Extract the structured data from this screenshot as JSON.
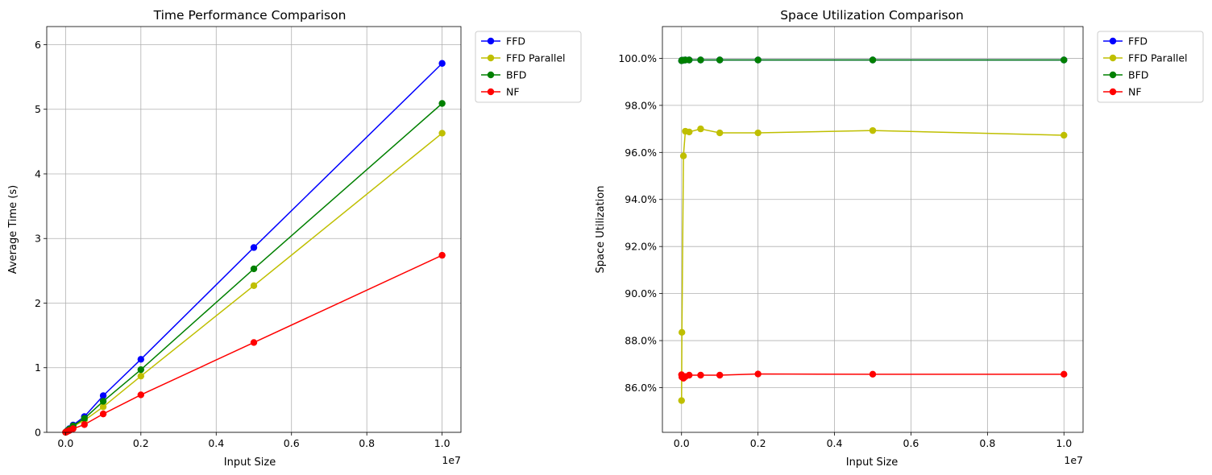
{
  "chart_data": [
    {
      "type": "line",
      "title": "Time Performance Comparison",
      "xlabel": "Input Size",
      "ylabel": "Average Time (s)",
      "x_offset_label": "1e7",
      "x_scale_factor": 10000000,
      "xlim": [
        -0.05,
        1.05
      ],
      "ylim": [
        0,
        6.28
      ],
      "x_ticks": [
        0.0,
        0.2,
        0.4,
        0.6,
        0.8,
        1.0
      ],
      "x_tick_labels": [
        "0.0",
        "0.2",
        "0.4",
        "0.6",
        "0.8",
        "1.0"
      ],
      "y_ticks": [
        0,
        1,
        2,
        3,
        4,
        5,
        6
      ],
      "y_tick_labels": [
        "0",
        "1",
        "2",
        "3",
        "4",
        "5",
        "6"
      ],
      "grid": true,
      "legend_position": "outside-upper-right",
      "x": [
        1000,
        10000,
        50000,
        100000,
        200000,
        500000,
        1000000,
        2000000,
        5000000,
        10000000
      ],
      "series": [
        {
          "name": "FFD",
          "color": "#0000ff",
          "values": [
            0.001,
            0.006,
            0.028,
            0.056,
            0.113,
            0.243,
            0.567,
            1.13,
            2.86,
            5.71
          ]
        },
        {
          "name": "FFD Parallel",
          "color": "#bfbf00",
          "values": [
            0.001,
            0.005,
            0.023,
            0.046,
            0.092,
            0.185,
            0.395,
            0.87,
            2.27,
            4.63
          ]
        },
        {
          "name": "BFD",
          "color": "#008000",
          "values": [
            0.001,
            0.005,
            0.025,
            0.05,
            0.1,
            0.215,
            0.48,
            0.97,
            2.53,
            5.09
          ]
        },
        {
          "name": "NF",
          "color": "#ff0000",
          "values": [
            0.0005,
            0.003,
            0.014,
            0.028,
            0.056,
            0.12,
            0.285,
            0.58,
            1.39,
            2.74
          ]
        }
      ]
    },
    {
      "type": "line",
      "title": "Space Utilization Comparison",
      "xlabel": "Input Size",
      "ylabel": "Space Utilization",
      "x_offset_label": "1e7",
      "x_scale_factor": 10000000,
      "xlim": [
        -0.05,
        1.05
      ],
      "ylim": [
        84.1,
        101.35
      ],
      "x_ticks": [
        0.0,
        0.2,
        0.4,
        0.6,
        0.8,
        1.0
      ],
      "x_tick_labels": [
        "0.0",
        "0.2",
        "0.4",
        "0.6",
        "0.8",
        "1.0"
      ],
      "y_ticks": [
        86,
        88,
        90,
        92,
        94,
        96,
        98,
        100
      ],
      "y_tick_labels": [
        "86.0%",
        "88.0%",
        "90.0%",
        "92.0%",
        "94.0%",
        "96.0%",
        "98.0%",
        "100.0%"
      ],
      "grid": true,
      "legend_position": "outside-upper-right",
      "x": [
        1000,
        10000,
        50000,
        100000,
        200000,
        500000,
        1000000,
        2000000,
        5000000,
        10000000
      ],
      "series": [
        {
          "name": "FFD",
          "color": "#0000ff",
          "values": [
            99.9,
            99.92,
            99.92,
            99.93,
            99.93,
            99.93,
            99.93,
            99.93,
            99.93,
            99.93
          ]
        },
        {
          "name": "FFD Parallel",
          "color": "#bfbf00",
          "values": [
            85.45,
            88.35,
            95.85,
            96.9,
            96.87,
            97.0,
            96.83,
            96.83,
            96.93,
            96.73
          ]
        },
        {
          "name": "BFD",
          "color": "#008000",
          "values": [
            99.9,
            99.92,
            99.92,
            99.93,
            99.93,
            99.93,
            99.93,
            99.93,
            99.93,
            99.93
          ]
        },
        {
          "name": "NF",
          "color": "#ff0000",
          "values": [
            86.55,
            86.45,
            86.4,
            86.47,
            86.53,
            86.53,
            86.53,
            86.58,
            86.57,
            86.57
          ]
        }
      ]
    }
  ]
}
